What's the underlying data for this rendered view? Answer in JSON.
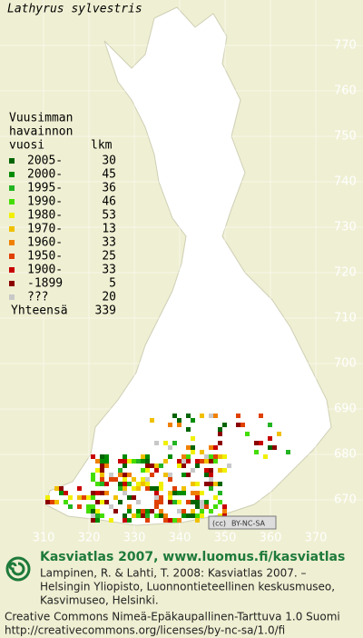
{
  "title": "Lathyrus sylvestris",
  "legend": {
    "header": [
      "Vuusimman",
      "havainnon",
      "vuosi"
    ],
    "count_header": "lkm",
    "items": [
      {
        "label": "2005-",
        "count": 30,
        "color": "#006400"
      },
      {
        "label": "2000-",
        "count": 45,
        "color": "#008c00"
      },
      {
        "label": "1995-",
        "count": 36,
        "color": "#22b422"
      },
      {
        "label": "1990-",
        "count": 46,
        "color": "#44dd00"
      },
      {
        "label": "1980-",
        "count": 53,
        "color": "#f0f000"
      },
      {
        "label": "1970-",
        "count": 13,
        "color": "#f0c000"
      },
      {
        "label": "1960-",
        "count": 33,
        "color": "#f08000"
      },
      {
        "label": "1950-",
        "count": 25,
        "color": "#e04000"
      },
      {
        "label": "1900-",
        "count": 33,
        "color": "#c80000"
      },
      {
        "label": "-1899",
        "count": 5,
        "color": "#8c0000"
      },
      {
        "label": "???",
        "count": 20,
        "color": "#c8c8c8"
      }
    ],
    "total_label": "Yhteensä",
    "total": 339
  },
  "grid": {
    "y_labels": [
      770,
      760,
      750,
      740,
      730,
      720,
      710,
      700,
      690,
      680,
      670
    ],
    "x_labels": [
      310,
      320,
      330,
      340,
      350,
      360,
      370
    ]
  },
  "license_badge": "BY-NC-SA",
  "footer": {
    "heading": "Kasviatlas 2007, www.luomus.fi/kasviatlas",
    "citation": [
      "Lampinen, R. & Lahti, T. 2008: Kasviatlas 2007. –",
      "Helsingin Yliopisto, Luonnontieteellinen keskusmuseo,",
      "Kasvimuseo, Helsinki."
    ],
    "license": [
      "Creative Commons Nimeä-Epäkaupallinen-Tarttuva 1.0 Suomi",
      "http://creativecommons.org/licenses/by-nc-sa/1.0/fi"
    ]
  }
}
